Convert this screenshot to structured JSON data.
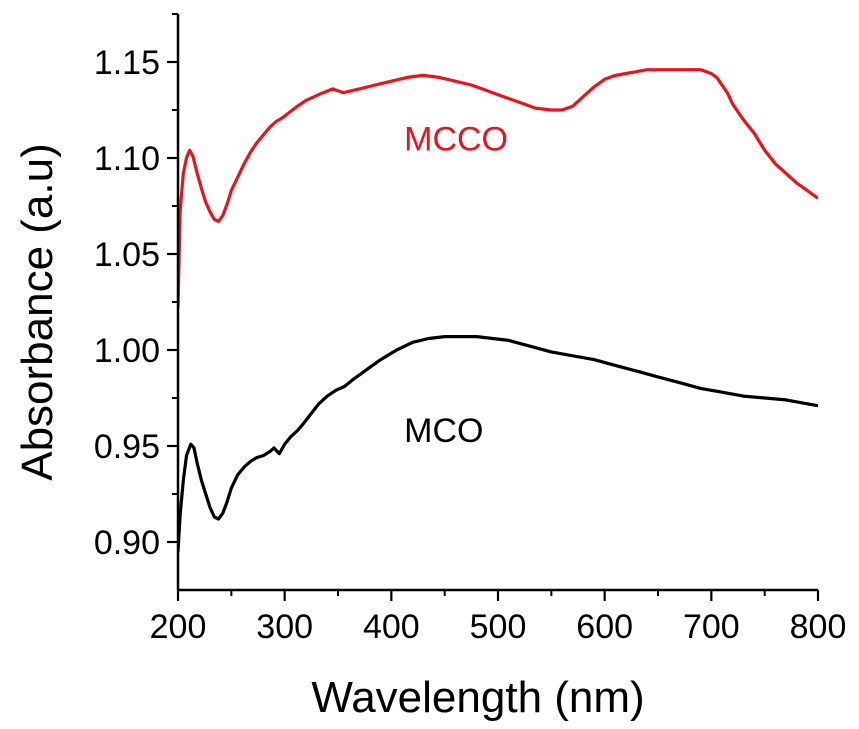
{
  "chart_data": {
    "type": "line",
    "title": "",
    "xlabel": "Wavelength (nm)",
    "ylabel": "Absorbance (a.u)",
    "xlim": [
      200,
      800
    ],
    "ylim": [
      0.875,
      1.175
    ],
    "x_ticks": [
      200,
      300,
      400,
      500,
      600,
      700,
      800
    ],
    "y_ticks": [
      0.9,
      0.95,
      1.0,
      1.05,
      1.1,
      1.15
    ],
    "x_tick_labels": [
      "200",
      "300",
      "400",
      "500",
      "600",
      "700",
      "800"
    ],
    "y_tick_labels": [
      "0.90",
      "0.95",
      "1.00",
      "1.05",
      "1.10",
      "1.15"
    ],
    "grid": false,
    "legend": "none",
    "series": [
      {
        "name": "MCCO",
        "color": "#e8141b",
        "label_at": [
          212,
          1.104
        ],
        "x": [
          200,
          202,
          205,
          208,
          211,
          214,
          218,
          222,
          226,
          230,
          234,
          238,
          242,
          246,
          250,
          256,
          262,
          268,
          274,
          280,
          286,
          292,
          298,
          305,
          312,
          320,
          328,
          336,
          345,
          355,
          370,
          385,
          400,
          415,
          430,
          445,
          460,
          475,
          490,
          505,
          520,
          535,
          550,
          560,
          570,
          580,
          590,
          600,
          610,
          620,
          630,
          640,
          650,
          660,
          670,
          680,
          690,
          700,
          705,
          710,
          715,
          720,
          730,
          740,
          750,
          760,
          770,
          780,
          790,
          800
        ],
        "y": [
          1.022,
          1.072,
          1.092,
          1.1,
          1.104,
          1.101,
          1.092,
          1.084,
          1.077,
          1.072,
          1.068,
          1.067,
          1.07,
          1.076,
          1.083,
          1.09,
          1.097,
          1.103,
          1.108,
          1.112,
          1.116,
          1.119,
          1.121,
          1.124,
          1.127,
          1.13,
          1.132,
          1.134,
          1.136,
          1.134,
          1.136,
          1.138,
          1.14,
          1.142,
          1.143,
          1.142,
          1.14,
          1.138,
          1.135,
          1.132,
          1.129,
          1.126,
          1.125,
          1.125,
          1.127,
          1.132,
          1.137,
          1.141,
          1.143,
          1.144,
          1.145,
          1.146,
          1.146,
          1.146,
          1.146,
          1.146,
          1.146,
          1.144,
          1.142,
          1.138,
          1.134,
          1.128,
          1.12,
          1.113,
          1.104,
          1.097,
          1.092,
          1.087,
          1.083,
          1.079
        ]
      },
      {
        "name": "MCO",
        "color": "#000000",
        "label_at": [
          212,
          0.952
        ],
        "x": [
          200,
          202,
          205,
          208,
          212,
          215,
          218,
          222,
          226,
          230,
          234,
          238,
          242,
          246,
          250,
          256,
          262,
          268,
          274,
          280,
          286,
          290,
          295,
          300,
          306,
          312,
          318,
          325,
          332,
          340,
          348,
          356,
          365,
          375,
          390,
          405,
          420,
          435,
          450,
          465,
          480,
          495,
          510,
          530,
          550,
          570,
          590,
          610,
          630,
          650,
          670,
          690,
          710,
          730,
          750,
          770,
          790,
          800
        ],
        "y": [
          0.895,
          0.914,
          0.932,
          0.945,
          0.951,
          0.949,
          0.941,
          0.932,
          0.925,
          0.918,
          0.913,
          0.912,
          0.915,
          0.921,
          0.928,
          0.935,
          0.939,
          0.942,
          0.944,
          0.945,
          0.947,
          0.949,
          0.946,
          0.951,
          0.955,
          0.958,
          0.962,
          0.967,
          0.972,
          0.976,
          0.979,
          0.981,
          0.985,
          0.989,
          0.995,
          1.0,
          1.004,
          1.006,
          1.007,
          1.007,
          1.007,
          1.006,
          1.005,
          1.002,
          0.999,
          0.997,
          0.995,
          0.992,
          0.989,
          0.986,
          0.983,
          0.98,
          0.978,
          0.976,
          0.975,
          0.974,
          0.972,
          0.971
        ]
      }
    ]
  }
}
